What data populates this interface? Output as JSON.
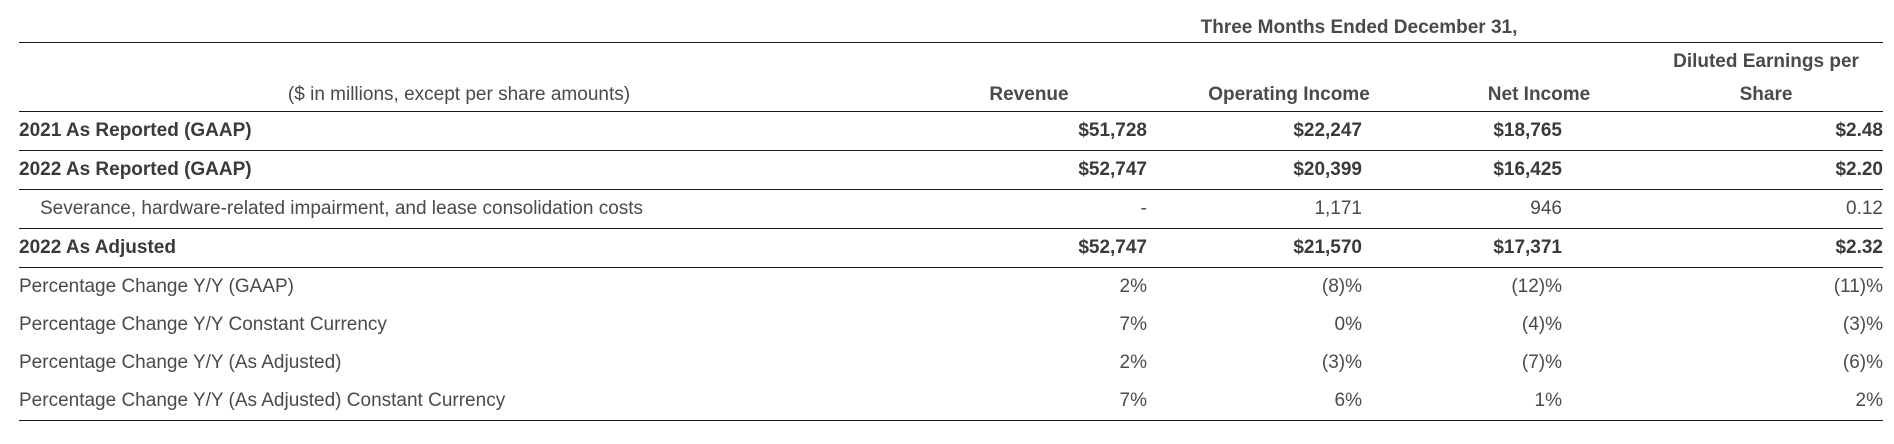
{
  "period_header": "Three Months Ended December 31,",
  "columns": {
    "units": "($ in millions, except per share amounts)",
    "revenue": "Revenue",
    "operating_income": "Operating Income",
    "net_income": "Net Income",
    "eps_line1": "Diluted Earnings per",
    "eps_line2": "Share"
  },
  "rows": [
    {
      "label": "2021 As Reported (GAAP)",
      "revenue": "$51,728",
      "operating_income": "$22,247",
      "net_income": "$18,765",
      "eps": "$2.48"
    },
    {
      "label": "2022 As Reported (GAAP)",
      "revenue": "$52,747",
      "operating_income": "$20,399",
      "net_income": "$16,425",
      "eps": "$2.20"
    },
    {
      "label": "Severance, hardware-related impairment, and lease consolidation costs",
      "revenue": "-",
      "operating_income": "1,171",
      "net_income": "946",
      "eps": "0.12"
    },
    {
      "label": "2022 As Adjusted",
      "revenue": "$52,747",
      "operating_income": "$21,570",
      "net_income": "$17,371",
      "eps": "$2.32"
    },
    {
      "label": "Percentage Change Y/Y (GAAP)",
      "revenue": "2%",
      "operating_income": "(8)%",
      "net_income": "(12)%",
      "eps": "(11)%"
    },
    {
      "label": "Percentage Change Y/Y Constant Currency",
      "revenue": "7%",
      "operating_income": "0%",
      "net_income": "(4)%",
      "eps": "(3)%"
    },
    {
      "label": "Percentage Change Y/Y (As Adjusted)",
      "revenue": "2%",
      "operating_income": "(3)%",
      "net_income": "(7)%",
      "eps": "(6)%"
    },
    {
      "label": "Percentage Change Y/Y (As Adjusted) Constant Currency",
      "revenue": "7%",
      "operating_income": "6%",
      "net_income": "1%",
      "eps": "2%"
    }
  ]
}
